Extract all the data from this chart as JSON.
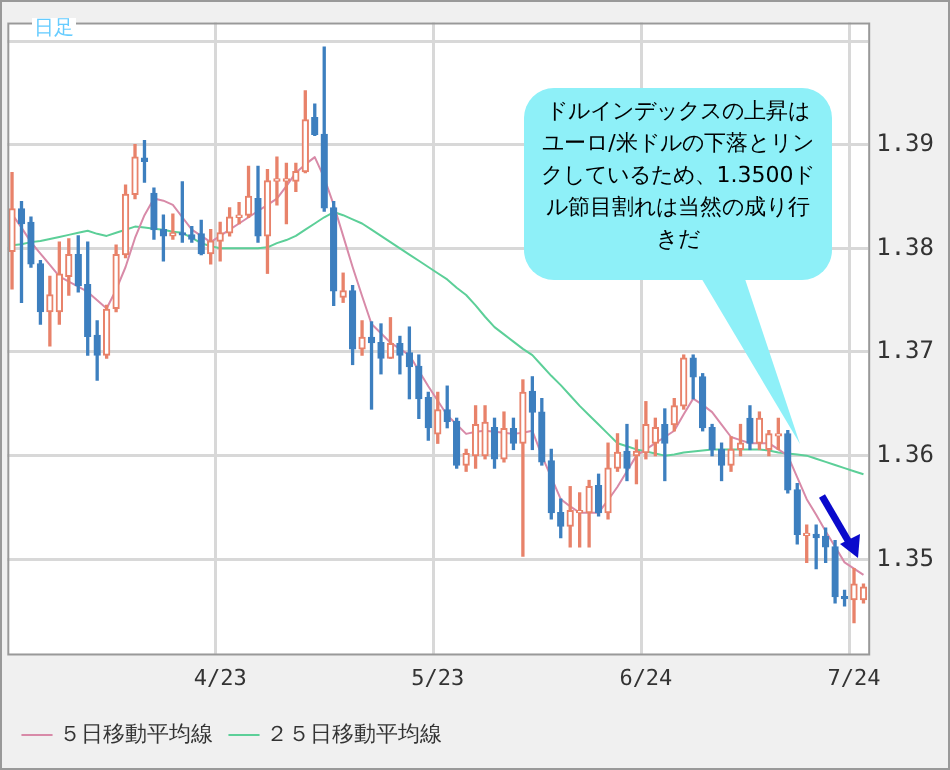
{
  "chart_data": {
    "type": "candlestick",
    "categories": [
      null,
      null,
      null,
      null,
      null,
      null,
      null,
      null,
      null,
      null,
      null,
      null,
      null,
      null,
      null,
      null,
      null,
      null,
      null,
      null,
      null,
      null,
      "4/23",
      null,
      null,
      null,
      null,
      null,
      null,
      null,
      null,
      null,
      null,
      null,
      null,
      null,
      null,
      null,
      null,
      null,
      null,
      null,
      null,
      null,
      null,
      "5/23",
      null,
      null,
      null,
      null,
      null,
      null,
      null,
      null,
      null,
      null,
      null,
      null,
      null,
      null,
      null,
      null,
      null,
      null,
      null,
      null,
      null,
      "6/24",
      null,
      null,
      null,
      null,
      null,
      null,
      null,
      null,
      null,
      null,
      null,
      null,
      null,
      null,
      null,
      null,
      null,
      null,
      null,
      null,
      null,
      "7/24",
      null
    ],
    "ohlc": [
      [
        1.3797,
        1.3873,
        1.3761,
        1.3838
      ],
      [
        1.3838,
        1.3845,
        1.3748,
        1.3824
      ],
      [
        1.3825,
        1.383,
        1.3782,
        1.3785
      ],
      [
        1.3785,
        1.3788,
        1.3727,
        1.3739
      ],
      [
        1.3739,
        1.3773,
        1.3706,
        1.3755
      ],
      [
        1.3739,
        1.3806,
        1.3727,
        1.3775
      ],
      [
        1.3773,
        1.3809,
        1.3755,
        1.3794
      ],
      [
        1.3794,
        1.3812,
        1.3758,
        1.3764
      ],
      [
        1.3765,
        1.3806,
        1.3697,
        1.3715
      ],
      [
        1.3716,
        1.373,
        1.3673,
        1.3697
      ],
      [
        1.3697,
        1.3745,
        1.3694,
        1.3741
      ],
      [
        1.3742,
        1.3803,
        1.3739,
        1.3794
      ],
      [
        1.3794,
        1.3861,
        1.3791,
        1.3852
      ],
      [
        1.3852,
        1.39,
        1.3848,
        1.3888
      ],
      [
        1.3887,
        1.3904,
        1.3864,
        1.3884
      ],
      [
        1.3853,
        1.3858,
        1.3809,
        1.3818
      ],
      [
        1.3818,
        1.3832,
        1.3788,
        1.3812
      ],
      [
        1.3812,
        1.3833,
        1.3809,
        1.3815
      ],
      [
        1.3815,
        1.3864,
        1.3806,
        1.3813
      ],
      [
        1.3813,
        1.3821,
        1.3806,
        1.3809
      ],
      [
        1.3814,
        1.3827,
        1.3794,
        1.3795
      ],
      [
        1.3795,
        1.3818,
        1.3785,
        1.3807
      ],
      [
        1.3807,
        1.3825,
        1.3788,
        1.3815
      ],
      [
        1.3815,
        1.3839,
        1.3812,
        1.383
      ],
      [
        1.383,
        1.3844,
        1.3824,
        1.3832
      ],
      [
        1.3832,
        1.3879,
        1.383,
        1.385
      ],
      [
        1.3848,
        1.3879,
        1.3806,
        1.3812
      ],
      [
        1.3812,
        1.3876,
        1.3776,
        1.3865
      ],
      [
        1.3865,
        1.3888,
        1.3842,
        1.3867
      ],
      [
        1.3865,
        1.3882,
        1.3824,
        1.3867
      ],
      [
        1.3865,
        1.3882,
        1.3855,
        1.3874
      ],
      [
        1.3874,
        1.3952,
        1.3873,
        1.3924
      ],
      [
        1.3926,
        1.3939,
        1.3909,
        1.391
      ],
      [
        1.391,
        1.3994,
        1.3836,
        1.3839
      ],
      [
        1.3839,
        1.3845,
        1.3745,
        1.3759
      ],
      [
        1.3753,
        1.3776,
        1.3748,
        1.3759
      ],
      [
        1.3759,
        1.3764,
        1.3688,
        1.3703
      ],
      [
        1.3703,
        1.373,
        1.3697,
        1.3714
      ],
      [
        1.3714,
        1.3729,
        1.3645,
        1.3709
      ],
      [
        1.3709,
        1.3727,
        1.3679,
        1.3694
      ],
      [
        1.3694,
        1.3733,
        1.3694,
        1.3708
      ],
      [
        1.3708,
        1.3715,
        1.3679,
        1.3697
      ],
      [
        1.3699,
        1.3724,
        1.3655,
        1.3686
      ],
      [
        1.3686,
        1.3697,
        1.3636,
        1.3655
      ],
      [
        1.3656,
        1.3661,
        1.3615,
        1.3627
      ],
      [
        1.3621,
        1.3661,
        1.3612,
        1.3644
      ],
      [
        1.3644,
        1.3667,
        1.3627,
        1.3633
      ],
      [
        1.3633,
        1.3636,
        1.3588,
        1.3591
      ],
      [
        1.3591,
        1.3606,
        1.3585,
        1.3602
      ],
      [
        1.36,
        1.3648,
        1.3588,
        1.363
      ],
      [
        1.36,
        1.3648,
        1.3597,
        1.3632
      ],
      [
        1.3627,
        1.3636,
        1.3588,
        1.3597
      ],
      [
        1.3597,
        1.3642,
        1.3594,
        1.3626
      ],
      [
        1.3626,
        1.3636,
        1.3606,
        1.3612
      ],
      [
        1.3612,
        1.3673,
        1.3503,
        1.3661
      ],
      [
        1.3662,
        1.3676,
        1.3606,
        1.3642
      ],
      [
        1.3642,
        1.3655,
        1.3591,
        1.3594
      ],
      [
        1.3595,
        1.3606,
        1.3539,
        1.3545
      ],
      [
        1.3545,
        1.3558,
        1.3521,
        1.3532
      ],
      [
        1.3532,
        1.357,
        1.3512,
        1.3547
      ],
      [
        1.3545,
        1.3564,
        1.3512,
        1.3546
      ],
      [
        1.3545,
        1.3576,
        1.3512,
        1.357
      ],
      [
        1.3571,
        1.3582,
        1.3542,
        1.3545
      ],
      [
        1.3545,
        1.3612,
        1.3539,
        1.3588
      ],
      [
        1.3588,
        1.3621,
        1.3585,
        1.3603
      ],
      [
        1.3604,
        1.363,
        1.3576,
        1.3588
      ],
      [
        1.36,
        1.3615,
        1.3573,
        1.3604
      ],
      [
        1.3603,
        1.3652,
        1.3597,
        1.363
      ],
      [
        1.3612,
        1.3636,
        1.36,
        1.3627
      ],
      [
        1.363,
        1.3645,
        1.3576,
        1.3612
      ],
      [
        1.363,
        1.3655,
        1.3624,
        1.3648
      ],
      [
        1.3648,
        1.3697,
        1.3645,
        1.3694
      ],
      [
        1.3694,
        1.3697,
        1.3655,
        1.3676
      ],
      [
        1.3676,
        1.3679,
        1.3624,
        1.3627
      ],
      [
        1.3627,
        1.363,
        1.36,
        1.3606
      ],
      [
        1.3606,
        1.3612,
        1.3576,
        1.3591
      ],
      [
        1.3591,
        1.3618,
        1.3585,
        1.3606
      ],
      [
        1.3606,
        1.363,
        1.36,
        1.3612
      ],
      [
        1.3636,
        1.3648,
        1.3606,
        1.3612
      ],
      [
        1.3612,
        1.3642,
        1.3606,
        1.3636
      ],
      [
        1.3606,
        1.3624,
        1.36,
        1.3621
      ],
      [
        1.3619,
        1.3636,
        1.3606,
        1.3621
      ],
      [
        1.3621,
        1.3624,
        1.3564,
        1.3567
      ],
      [
        1.3567,
        1.3573,
        1.3515,
        1.3524
      ],
      [
        1.3523,
        1.3533,
        1.3497,
        1.3524
      ],
      [
        1.3524,
        1.3533,
        1.3491,
        1.3521
      ],
      [
        1.3522,
        1.353,
        1.3497,
        1.3512
      ],
      [
        1.3512,
        1.3518,
        1.3458,
        1.3464
      ],
      [
        1.3464,
        1.347,
        1.3455,
        1.3462
      ],
      [
        1.3461,
        1.3491,
        1.3439,
        1.3476
      ],
      [
        1.3461,
        1.3476,
        1.3458,
        1.3473
      ]
    ],
    "colors": [
      "#e8826a",
      "#3d7fbf",
      "#3d7fbf",
      "#3d7fbf",
      "#e8826a",
      "#e8826a",
      "#e8826a",
      "#3d7fbf",
      "#3d7fbf",
      "#3d7fbf",
      "#e8826a",
      "#e8826a",
      "#e8826a",
      "#e8826a",
      "#3d7fbf",
      "#3d7fbf",
      "#3d7fbf",
      "#e8826a",
      "#3d7fbf",
      "#3d7fbf",
      "#3d7fbf",
      "#e8826a",
      "#e8826a",
      "#e8826a",
      "#e8826a",
      "#e8826a",
      "#3d7fbf",
      "#e8826a",
      "#e8826a",
      "#e8826a",
      "#e8826a",
      "#e8826a",
      "#3d7fbf",
      "#3d7fbf",
      "#3d7fbf",
      "#e8826a",
      "#3d7fbf",
      "#e8826a",
      "#3d7fbf",
      "#3d7fbf",
      "#e8826a",
      "#3d7fbf",
      "#3d7fbf",
      "#3d7fbf",
      "#3d7fbf",
      "#e8826a",
      "#3d7fbf",
      "#3d7fbf",
      "#e8826a",
      "#e8826a",
      "#e8826a",
      "#3d7fbf",
      "#e8826a",
      "#3d7fbf",
      "#e8826a",
      "#3d7fbf",
      "#3d7fbf",
      "#3d7fbf",
      "#3d7fbf",
      "#e8826a",
      "#e8826a",
      "#e8826a",
      "#3d7fbf",
      "#e8826a",
      "#e8826a",
      "#3d7fbf",
      "#e8826a",
      "#e8826a",
      "#e8826a",
      "#3d7fbf",
      "#e8826a",
      "#e8826a",
      "#3d7fbf",
      "#3d7fbf",
      "#3d7fbf",
      "#3d7fbf",
      "#e8826a",
      "#e8826a",
      "#3d7fbf",
      "#e8826a",
      "#e8826a",
      "#e8826a",
      "#3d7fbf",
      "#3d7fbf",
      "#e8826a",
      "#3d7fbf",
      "#3d7fbf",
      "#3d7fbf",
      "#3d7fbf",
      "#e8826a",
      "#e8826a"
    ],
    "series": [
      {
        "type": "line",
        "name": "５日移動平均線",
        "color": "#d88aa8",
        "values": [
          1.3833,
          1.382,
          1.3806,
          1.3795,
          1.3784,
          1.3773,
          1.3768,
          1.3763,
          1.3758,
          1.375,
          1.3742,
          1.376,
          1.3782,
          1.381,
          1.3832,
          1.3848,
          1.3846,
          1.3842,
          1.383,
          1.3818,
          1.3812,
          1.3806,
          1.3812,
          1.3818,
          1.3824,
          1.383,
          1.3836,
          1.3842,
          1.3848,
          1.386,
          1.3873,
          1.3881,
          1.3888,
          1.3868,
          1.3842,
          1.3812,
          1.3782,
          1.3754,
          1.3727,
          1.3718,
          1.3709,
          1.3703,
          1.3697,
          1.3682,
          1.3667,
          1.3653,
          1.3639,
          1.363,
          1.3621,
          1.3623,
          1.3624,
          1.3623,
          1.3622,
          1.3621,
          1.3622,
          1.3624,
          1.36,
          1.3579,
          1.3558,
          1.3551,
          1.3545,
          1.3545,
          1.3545,
          1.3557,
          1.357,
          1.3585,
          1.36,
          1.3606,
          1.3612,
          1.3618,
          1.3624,
          1.364,
          1.3655,
          1.3649,
          1.3642,
          1.363,
          1.3618,
          1.3615,
          1.3612,
          1.3612,
          1.3612,
          1.3606,
          1.36,
          1.3579,
          1.3558,
          1.3543,
          1.3527,
          1.3512,
          1.3497,
          1.3491,
          1.3485
        ]
      },
      {
        "type": "line",
        "name": "２５日移動平均線",
        "color": "#5ccf98",
        "values": [
          1.3803,
          1.3804,
          1.3806,
          1.3807,
          1.3809,
          1.3811,
          1.3813,
          1.3815,
          1.3817,
          1.3814,
          1.3812,
          1.3815,
          1.3818,
          1.3821,
          1.382,
          1.3819,
          1.3818,
          1.3816,
          1.3815,
          1.381,
          1.3805,
          1.3802,
          1.38,
          1.38,
          1.38,
          1.38,
          1.38,
          1.3801,
          1.3805,
          1.3808,
          1.3812,
          1.3818,
          1.3824,
          1.383,
          1.3835,
          1.3832,
          1.3828,
          1.3824,
          1.3818,
          1.3812,
          1.3806,
          1.38,
          1.3794,
          1.3788,
          1.3782,
          1.3776,
          1.377,
          1.3762,
          1.3755,
          1.3745,
          1.3734,
          1.3724,
          1.3717,
          1.371,
          1.3703,
          1.3697,
          1.3687,
          1.3677,
          1.3668,
          1.3658,
          1.3648,
          1.3639,
          1.363,
          1.3621,
          1.3612,
          1.3609,
          1.3606,
          1.3604,
          1.3602,
          1.36,
          1.3601,
          1.3603,
          1.3604,
          1.3605,
          1.3606,
          1.3606,
          1.3606,
          1.3606,
          1.3606,
          1.3606,
          1.3605,
          1.3603,
          1.3602,
          1.3601,
          1.36,
          1.3597,
          1.3594,
          1.3591,
          1.3588,
          1.3585,
          1.3582
        ]
      }
    ],
    "ylim": [
      1.3409,
      1.4018
    ],
    "yticks": [
      1.35,
      1.36,
      1.37,
      1.38,
      1.39,
      {
        "value": 1.4,
        "label": null
      }
    ],
    "grid": true,
    "legend": "bottom",
    "marker": "none",
    "line_style": "solid",
    "annotations": [
      "日足",
      "ドルインデックスの上昇はユーロ/米ドルの下落とリンクしているため、1.3500ドル節目割れは当然の成り行きだ"
    ]
  }
}
